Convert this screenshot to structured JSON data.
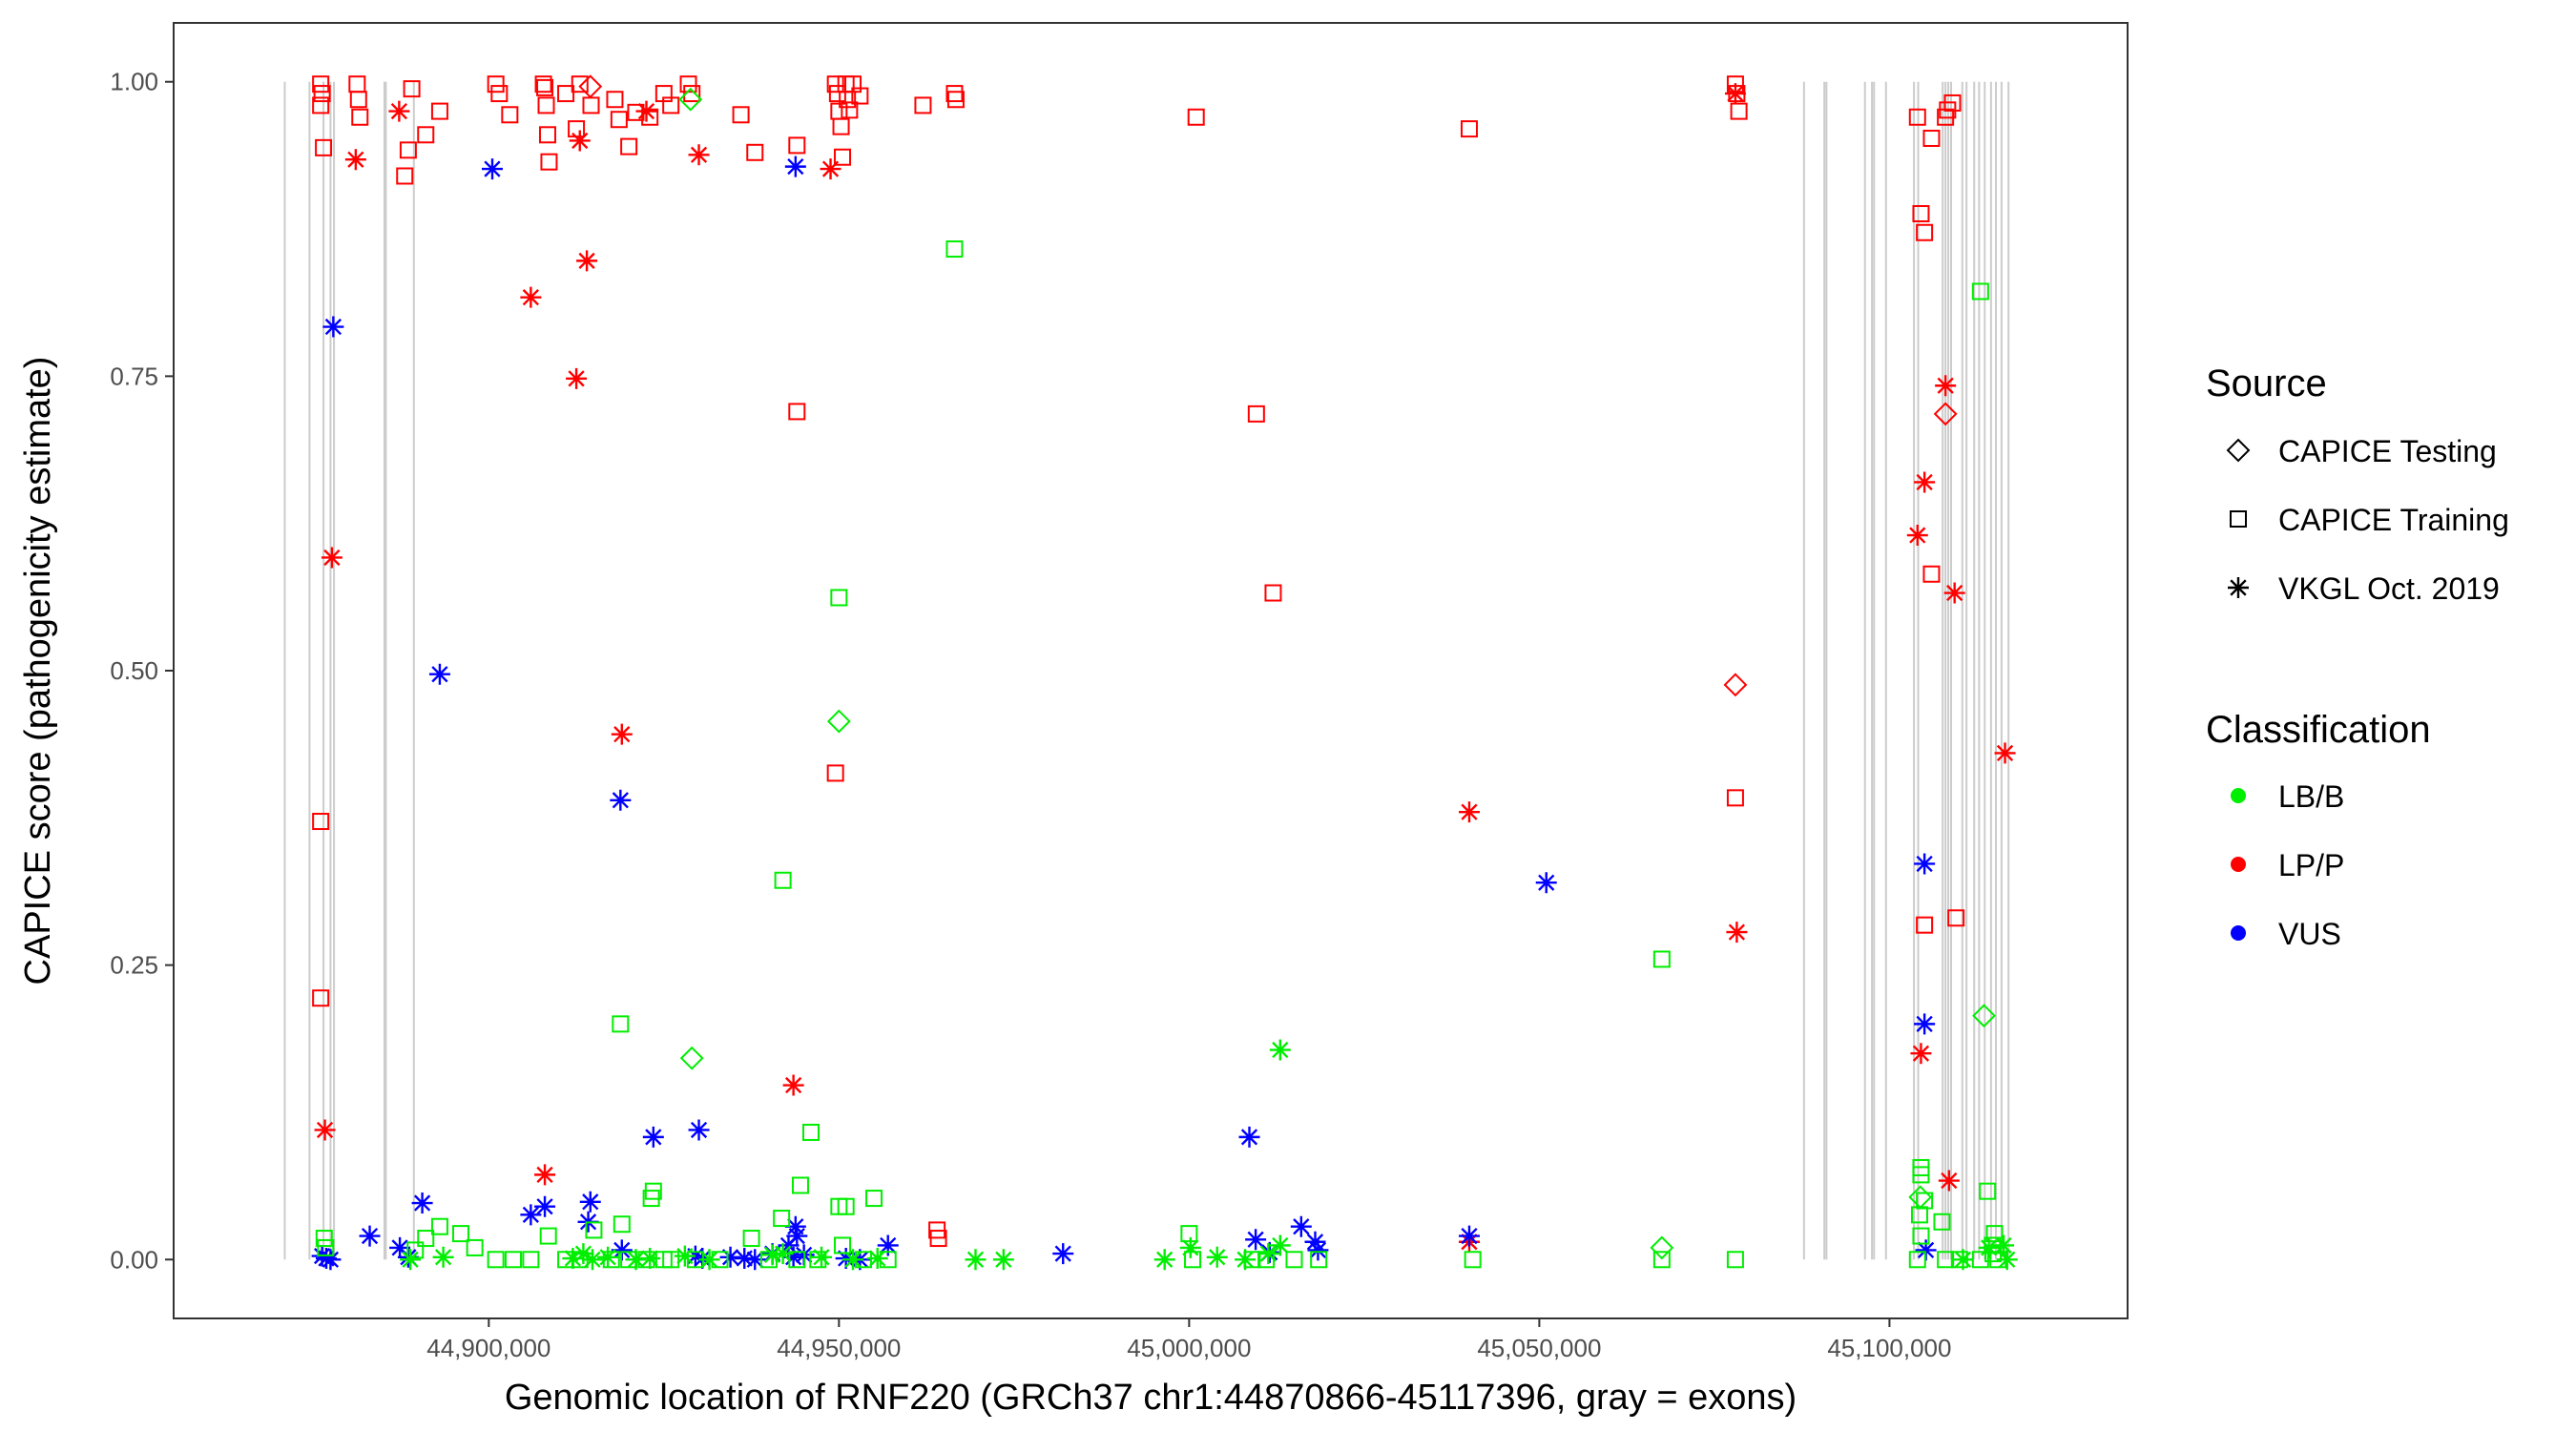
{
  "chart_data": {
    "type": "scatter",
    "title": "",
    "xlabel": "Genomic location of RNF220 (GRCh37 chr1:44870866-45117396, gray = exons)",
    "ylabel": "CAPICE score (pathogenicity estimate)",
    "xlim": [
      44855000,
      45134000
    ],
    "ylim": [
      -0.05,
      1.05
    ],
    "x_ticks": [
      44900000,
      44950000,
      45000000,
      45050000,
      45100000
    ],
    "x_tick_labels": [
      "44,900,000",
      "44,950,000",
      "45,000,000",
      "45,050,000",
      "45,100,000"
    ],
    "y_ticks": [
      0,
      0.25,
      0.5,
      0.75,
      1
    ],
    "y_tick_labels": [
      "0.00",
      "0.25",
      "0.50",
      "0.75",
      "1.00"
    ],
    "grid": false,
    "exons": [
      44870866,
      44874400,
      44876400,
      44877400,
      44877900,
      44885100,
      44885300,
      44889300,
      45087800,
      45090700,
      45091000,
      45096500,
      45097500,
      45097800,
      45099500,
      45103500,
      45104100,
      45107600,
      45108000,
      45108400,
      45108800,
      45110400,
      45111000,
      45112100,
      45112800,
      45113600,
      45114500,
      45115200,
      45116000,
      45117000
    ],
    "legend": {
      "source_title": "Source",
      "source_entries": [
        {
          "label": "CAPICE Testing",
          "shape": "diamond"
        },
        {
          "label": "CAPICE Training",
          "shape": "square"
        },
        {
          "label": "VKGL Oct. 2019",
          "shape": "asterisk"
        }
      ],
      "class_title": "Classification",
      "class_entries": [
        {
          "label": "LB/B",
          "color": "#00ee00"
        },
        {
          "label": "LP/P",
          "color": "#ff0000"
        },
        {
          "label": "VUS",
          "color": "#0000ff"
        }
      ],
      "position": "right"
    },
    "colors": {
      "LB/B": "#00ee00",
      "LP/P": "#ff0000",
      "VUS": "#0000ff"
    },
    "series": [
      {
        "name": "CAPICE Training / LP/P",
        "shape": "square",
        "class": "LP/P",
        "x": [
          44876000,
          44876200,
          44876400,
          44881200,
          44881400,
          44881600,
          44888000,
          44888500,
          44889000,
          44891000,
          44893000,
          44901000,
          44901500,
          44903000,
          44907800,
          44908000,
          44908200,
          44908400,
          44908600,
          44911000,
          44912500,
          44913000,
          44914600,
          44918000,
          44918600,
          44920000,
          44921000,
          44923000,
          44925000,
          44926000,
          44928500,
          44929000,
          44936000,
          44938000,
          44944000,
          44949500,
          44949800,
          44950000,
          44950300,
          44950500,
          44951000,
          44951200,
          44951500,
          44952000,
          44953000,
          44962000,
          44966500,
          44966700,
          45001000,
          45078000,
          45078200,
          45078500,
          45104000,
          45108000,
          45108300,
          45109000,
          45040000,
          45009600,
          45012000,
          44944000,
          44949500,
          45078000,
          45104500,
          45105000,
          45106000,
          45106000,
          45109500,
          45105000,
          44876000,
          44876000,
          44876000,
          44964000,
          44964200
        ],
        "y": [
          0.998,
          0.99,
          0.944,
          0.998,
          0.985,
          0.97,
          0.92,
          0.942,
          0.994,
          0.955,
          0.975,
          0.998,
          0.99,
          0.972,
          0.998,
          0.995,
          0.98,
          0.955,
          0.932,
          0.99,
          0.96,
          0.998,
          0.98,
          0.985,
          0.968,
          0.945,
          0.974,
          0.97,
          0.99,
          0.98,
          0.998,
          0.99,
          0.972,
          0.94,
          0.946,
          0.998,
          0.99,
          0.975,
          0.962,
          0.936,
          0.998,
          0.985,
          0.976,
          0.998,
          0.988,
          0.98,
          0.99,
          0.985,
          0.97,
          0.998,
          0.99,
          0.975,
          0.97,
          0.97,
          0.976,
          0.982,
          0.96,
          0.718,
          0.566,
          0.72,
          0.413,
          0.392,
          0.888,
          0.872,
          0.582,
          0.952,
          0.29,
          0.284,
          0.372,
          0.222,
          0.98,
          0.025,
          0.018
        ]
      },
      {
        "name": "VKGL Oct. 2019 / LP/P",
        "shape": "asterisk",
        "class": "LP/P",
        "x": [
          44881000,
          44887200,
          44913000,
          44914000,
          44912500,
          44906000,
          44922500,
          44930000,
          44948800,
          44877600,
          44919000,
          44876600,
          44908000,
          44943500,
          45040000,
          45078200,
          45078000,
          45104500,
          45108000,
          45109300,
          45104000,
          45105000,
          45108500,
          45116500,
          45040000
        ],
        "y": [
          0.934,
          0.975,
          0.95,
          0.848,
          0.748,
          0.817,
          0.975,
          0.938,
          0.926,
          0.596,
          0.446,
          0.11,
          0.072,
          0.148,
          0.38,
          0.278,
          0.99,
          0.175,
          0.742,
          0.566,
          0.615,
          0.66,
          0.067,
          0.43,
          0.015
        ]
      },
      {
        "name": "CAPICE Testing / LP/P",
        "shape": "diamond",
        "class": "LP/P",
        "x": [
          44914500,
          45078000,
          45108000
        ],
        "y": [
          0.996,
          0.488,
          0.718
        ]
      },
      {
        "name": "VKGL Oct. 2019 / VUS",
        "shape": "asterisk",
        "class": "VUS",
        "x": [
          44877800,
          44893000,
          44900500,
          44918800,
          44923500,
          44930000,
          44890500,
          44943800,
          44943800,
          44908000,
          44906000,
          44914500,
          44914200,
          44919000,
          44944000,
          44876200,
          44876800,
          44877400,
          44883000,
          44887300,
          44888500,
          44929500,
          44930500,
          44934500,
          44936500,
          44938000,
          44940500,
          44942800,
          44943500,
          44945000,
          44951000,
          44953000,
          44957000,
          44982000,
          45008600,
          45009500,
          45011500,
          45016000,
          45018000,
          45018400,
          45040000,
          45051000,
          45105000,
          45105000,
          45105200
        ],
        "y": [
          0.792,
          0.497,
          0.926,
          0.39,
          0.104,
          0.11,
          0.048,
          0.928,
          0.028,
          0.045,
          0.038,
          0.049,
          0.032,
          0.008,
          0.02,
          0.003,
          0.001,
          0.0,
          0.02,
          0.01,
          0.002,
          0.003,
          0.001,
          0.002,
          0.001,
          0.0,
          0.005,
          0.012,
          0.002,
          0.004,
          0.001,
          0.0,
          0.012,
          0.005,
          0.104,
          0.017,
          0.006,
          0.028,
          0.015,
          0.008,
          0.02,
          0.32,
          0.336,
          0.2,
          0.008
        ]
      },
      {
        "name": "CAPICE Training / LB/B",
        "shape": "square",
        "class": "LB/B",
        "x": [
          44966500,
          44950000,
          44942000,
          44946000,
          44944500,
          44918800,
          44923500,
          44919000,
          44923200,
          44925000,
          44941800,
          44955000,
          44951000,
          44950000,
          45067500,
          45104500,
          45104500,
          45105000,
          45104300,
          45113000,
          45114000,
          45107500,
          45115000,
          45114700,
          44876500,
          44876700,
          44891000,
          44893000,
          44896000,
          44898000,
          44901000,
          44903500,
          44906000,
          44908500,
          44911000,
          44913000,
          44915000,
          44917500,
          44920000,
          44922500,
          44926000,
          44929500,
          44933000,
          44937500,
          44940000,
          44944000,
          44947000,
          44950500,
          44953500,
          44957000,
          45000000,
          45000500,
          45009000,
          45011000,
          45015000,
          45018500,
          45040500,
          45067500,
          45078000,
          45104000,
          45104500,
          45108000,
          45110000,
          45113000,
          45114800,
          45115500,
          44889500
        ],
        "y": [
          0.858,
          0.562,
          0.322,
          0.108,
          0.063,
          0.2,
          0.058,
          0.03,
          0.052,
          0.0,
          0.035,
          0.052,
          0.045,
          0.045,
          0.255,
          0.072,
          0.078,
          0.05,
          0.038,
          0.822,
          0.058,
          0.032,
          0.022,
          0.012,
          0.018,
          0.01,
          0.018,
          0.028,
          0.022,
          0.01,
          0.0,
          0.0,
          0.0,
          0.02,
          0.0,
          0.0,
          0.025,
          0.0,
          0.0,
          0.0,
          0.0,
          0.0,
          0.0,
          0.018,
          0.0,
          0.0,
          0.0,
          0.012,
          0.0,
          0.0,
          0.022,
          0.0,
          0.0,
          0.0,
          0.0,
          0.0,
          0.0,
          0.0,
          0.0,
          0.0,
          0.02,
          0.0,
          0.0,
          0.0,
          0.005,
          0.0,
          0.008
        ]
      },
      {
        "name": "VKGL Oct. 2019 / LB/B",
        "shape": "asterisk",
        "class": "LB/B",
        "x": [
          45013000,
          44912000,
          44913500,
          44914800,
          44917000,
          44921000,
          44923000,
          44928000,
          44931500,
          44940500,
          44942000,
          44947500,
          44952000,
          44955500,
          44969500,
          44973500,
          44996500,
          45000200,
          45004000,
          45008000,
          45011300,
          45013000,
          45110500,
          45114200,
          45116300,
          45116800,
          44888800,
          44893500
        ],
        "y": [
          0.178,
          0.001,
          0.005,
          0.0,
          0.002,
          0.0,
          0.001,
          0.003,
          0.0,
          0.004,
          0.005,
          0.002,
          0.0,
          0.001,
          0.0,
          0.0,
          0.0,
          0.01,
          0.002,
          0.0,
          0.005,
          0.012,
          0.0,
          0.01,
          0.012,
          0.0,
          0.0,
          0.002
        ]
      },
      {
        "name": "CAPICE Testing / LB/B",
        "shape": "diamond",
        "class": "LB/B",
        "x": [
          44928800,
          44950000,
          44929000,
          45067500,
          45104400,
          45113500
        ],
        "y": [
          0.985,
          0.457,
          0.171,
          0.01,
          0.053,
          0.207
        ]
      }
    ]
  }
}
